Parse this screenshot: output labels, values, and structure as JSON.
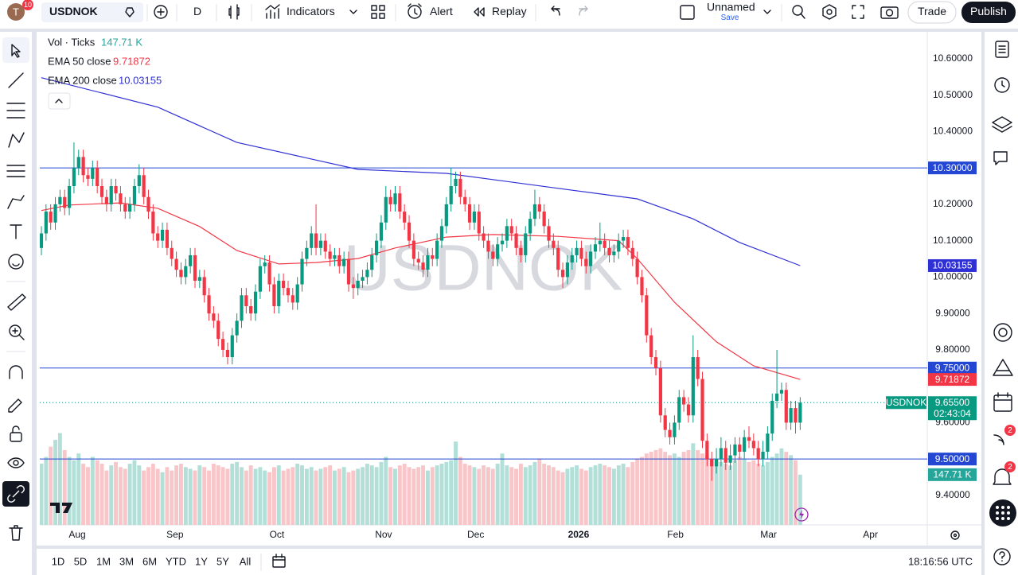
{
  "toolbar": {
    "avatar_badge": "10",
    "symbol": "USDNOK",
    "interval": "D",
    "indicators": "Indicators",
    "alert": "Alert",
    "replay": "Replay",
    "layout_name": "Unnamed",
    "layout_save": "Save",
    "trade": "Trade",
    "publish": "Publish"
  },
  "legend": {
    "volume_label": "Vol · Ticks"
  },
  "watermark": "USDNOK",
  "bottom_bar": {
    "ranges": [
      "1D",
      "5D",
      "1M",
      "3M",
      "6M",
      "YTD",
      "1Y",
      "5Y",
      "All"
    ],
    "clock": "18:16:56 UTC"
  },
  "right_toolbar": {
    "badges": [
      "2",
      "2"
    ]
  },
  "chart_data": {
    "type": "candlestick",
    "up_color": "#089981",
    "down_color": "#f23645",
    "xlim": [
      -0.34,
      190.3
    ],
    "xticks": [
      {
        "value": 7.7,
        "label": "Aug"
      },
      {
        "value": 28.7,
        "label": "Sep"
      },
      {
        "value": 50.6,
        "label": "Oct"
      },
      {
        "value": 73.5,
        "label": "Nov"
      },
      {
        "value": 93.3,
        "label": "Dec"
      },
      {
        "value": 115.4,
        "label": "2026",
        "bold": true
      },
      {
        "value": 136.2,
        "label": "Feb"
      },
      {
        "value": 156.2,
        "label": "Mar"
      },
      {
        "value": 178.1,
        "label": "Apr"
      }
    ],
    "ylim": [
      9.319,
      10.674
    ],
    "yticks": [
      {
        "value": 10.6,
        "label": "10.60000"
      },
      {
        "value": 10.5,
        "label": "10.50000"
      },
      {
        "value": 10.4,
        "label": "10.40000"
      },
      {
        "value": 10.2,
        "label": "10.20000"
      },
      {
        "value": 10.1,
        "label": "10.10000"
      },
      {
        "value": 10.0,
        "label": "10.00000"
      },
      {
        "value": 9.9,
        "label": "9.90000"
      },
      {
        "value": 9.8,
        "label": "9.80000"
      },
      {
        "value": 9.6,
        "label": "9.60000"
      },
      {
        "value": 9.4,
        "label": "9.40000"
      }
    ],
    "candles": [
      [
        10.08,
        10.14,
        10.06,
        10.12
      ],
      [
        10.12,
        10.2,
        10.1,
        10.18
      ],
      [
        10.18,
        10.2,
        10.13,
        10.15
      ],
      [
        10.15,
        10.22,
        10.13,
        10.2
      ],
      [
        10.2,
        10.24,
        10.18,
        10.22
      ],
      [
        10.22,
        10.24,
        10.17,
        10.19
      ],
      [
        10.19,
        10.27,
        10.17,
        10.25
      ],
      [
        10.25,
        10.37,
        10.23,
        10.3
      ],
      [
        10.3,
        10.35,
        10.28,
        10.33
      ],
      [
        10.33,
        10.35,
        10.26,
        10.28
      ],
      [
        10.28,
        10.3,
        10.25,
        10.27
      ],
      [
        10.27,
        10.32,
        10.25,
        10.3
      ],
      [
        10.3,
        10.32,
        10.23,
        10.25
      ],
      [
        10.25,
        10.27,
        10.2,
        10.22
      ],
      [
        10.22,
        10.24,
        10.18,
        10.2
      ],
      [
        10.2,
        10.27,
        10.18,
        10.25
      ],
      [
        10.25,
        10.27,
        10.21,
        10.23
      ],
      [
        10.23,
        10.25,
        10.18,
        10.2
      ],
      [
        10.2,
        10.22,
        10.16,
        10.18
      ],
      [
        10.18,
        10.22,
        10.16,
        10.2
      ],
      [
        10.2,
        10.27,
        10.18,
        10.25
      ],
      [
        10.25,
        10.31,
        10.23,
        10.28
      ],
      [
        10.28,
        10.3,
        10.2,
        10.22
      ],
      [
        10.22,
        10.24,
        10.16,
        10.18
      ],
      [
        10.18,
        10.2,
        10.1,
        10.12
      ],
      [
        10.12,
        10.14,
        10.08,
        10.1
      ],
      [
        10.1,
        10.15,
        10.08,
        10.13
      ],
      [
        10.13,
        10.15,
        10.06,
        10.08
      ],
      [
        10.08,
        10.1,
        10.03,
        10.05
      ],
      [
        10.05,
        10.07,
        10.0,
        10.02
      ],
      [
        10.02,
        10.04,
        9.98,
        10.0
      ],
      [
        10.0,
        10.05,
        9.98,
        10.03
      ],
      [
        10.03,
        10.08,
        10.01,
        10.06
      ],
      [
        10.06,
        10.08,
        9.97,
        9.99
      ],
      [
        9.99,
        10.02,
        9.97,
        10.0
      ],
      [
        10.0,
        10.02,
        9.93,
        9.95
      ],
      [
        9.95,
        9.97,
        9.88,
        9.9
      ],
      [
        9.9,
        9.92,
        9.86,
        9.88
      ],
      [
        9.88,
        9.9,
        9.81,
        9.83
      ],
      [
        9.83,
        9.85,
        9.78,
        9.8
      ],
      [
        9.8,
        9.82,
        9.76,
        9.78
      ],
      [
        9.78,
        9.86,
        9.76,
        9.84
      ],
      [
        9.84,
        9.9,
        9.82,
        9.88
      ],
      [
        9.88,
        9.97,
        9.86,
        9.95
      ],
      [
        9.95,
        9.97,
        9.9,
        9.92
      ],
      [
        9.92,
        9.94,
        9.88,
        9.9
      ],
      [
        9.9,
        9.98,
        9.88,
        9.96
      ],
      [
        9.96,
        10.05,
        9.94,
        10.03
      ],
      [
        10.03,
        10.06,
        10.01,
        10.04
      ],
      [
        10.04,
        10.06,
        9.96,
        9.98
      ],
      [
        9.98,
        10.0,
        9.9,
        9.92
      ],
      [
        9.92,
        10.01,
        9.9,
        9.99
      ],
      [
        9.99,
        10.01,
        9.95,
        9.97
      ],
      [
        9.97,
        9.99,
        9.93,
        9.95
      ],
      [
        9.95,
        9.97,
        9.91,
        9.93
      ],
      [
        9.93,
        10.0,
        9.91,
        9.98
      ],
      [
        9.98,
        10.07,
        9.96,
        10.05
      ],
      [
        10.05,
        10.1,
        10.03,
        10.08
      ],
      [
        10.08,
        10.14,
        10.06,
        10.12
      ],
      [
        10.12,
        10.2,
        10.06,
        10.08
      ],
      [
        10.08,
        10.12,
        10.06,
        10.1
      ],
      [
        10.1,
        10.12,
        10.05,
        10.07
      ],
      [
        10.07,
        10.09,
        10.03,
        10.05
      ],
      [
        10.05,
        10.08,
        10.03,
        10.06
      ],
      [
        10.06,
        10.08,
        10.01,
        10.03
      ],
      [
        10.03,
        10.07,
        10.01,
        10.05
      ],
      [
        10.05,
        10.07,
        9.96,
        9.98
      ],
      [
        9.98,
        10.0,
        9.94,
        9.97
      ],
      [
        9.97,
        10.01,
        9.95,
        9.99
      ],
      [
        9.99,
        10.02,
        9.97,
        10.0
      ],
      [
        10.0,
        10.04,
        9.98,
        10.02
      ],
      [
        10.02,
        10.08,
        10.0,
        10.06
      ],
      [
        10.06,
        10.12,
        10.04,
        10.1
      ],
      [
        10.1,
        10.17,
        10.08,
        10.15
      ],
      [
        10.15,
        10.25,
        10.13,
        10.22
      ],
      [
        10.22,
        10.24,
        10.18,
        10.2
      ],
      [
        10.2,
        10.25,
        10.18,
        10.23
      ],
      [
        10.23,
        10.25,
        10.16,
        10.18
      ],
      [
        10.18,
        10.2,
        10.13,
        10.15
      ],
      [
        10.15,
        10.17,
        10.08,
        10.1
      ],
      [
        10.1,
        10.12,
        10.03,
        10.05
      ],
      [
        10.05,
        10.07,
        10.02,
        10.04
      ],
      [
        10.04,
        10.06,
        10.0,
        10.02
      ],
      [
        10.02,
        10.08,
        10.0,
        10.06
      ],
      [
        10.06,
        10.08,
        10.03,
        10.05
      ],
      [
        10.05,
        10.12,
        10.03,
        10.1
      ],
      [
        10.1,
        10.16,
        10.08,
        10.14
      ],
      [
        10.14,
        10.22,
        10.12,
        10.2
      ],
      [
        10.2,
        10.3,
        10.18,
        10.25
      ],
      [
        10.25,
        10.29,
        10.23,
        10.27
      ],
      [
        10.27,
        10.29,
        10.2,
        10.22
      ],
      [
        10.22,
        10.24,
        10.18,
        10.2
      ],
      [
        10.2,
        10.22,
        10.13,
        10.15
      ],
      [
        10.15,
        10.2,
        10.13,
        10.18
      ],
      [
        10.18,
        10.2,
        10.1,
        10.12
      ],
      [
        10.12,
        10.14,
        10.08,
        10.1
      ],
      [
        10.1,
        10.12,
        10.05,
        10.07
      ],
      [
        10.07,
        10.09,
        10.03,
        10.05
      ],
      [
        10.05,
        10.11,
        10.03,
        10.09
      ],
      [
        10.09,
        10.12,
        10.07,
        10.1
      ],
      [
        10.1,
        10.16,
        10.08,
        10.14
      ],
      [
        10.14,
        10.16,
        10.1,
        10.12
      ],
      [
        10.12,
        10.14,
        10.06,
        10.08
      ],
      [
        10.08,
        10.1,
        10.04,
        10.06
      ],
      [
        10.06,
        10.14,
        10.04,
        10.12
      ],
      [
        10.12,
        10.18,
        10.1,
        10.16
      ],
      [
        10.16,
        10.24,
        10.14,
        10.2
      ],
      [
        10.2,
        10.22,
        10.16,
        10.18
      ],
      [
        10.18,
        10.2,
        10.12,
        10.14
      ],
      [
        10.14,
        10.16,
        10.08,
        10.1
      ],
      [
        10.1,
        10.12,
        10.06,
        10.08
      ],
      [
        10.08,
        10.1,
        10.0,
        10.02
      ],
      [
        10.02,
        10.04,
        9.97,
        10.0
      ],
      [
        10.0,
        10.06,
        9.98,
        10.04
      ],
      [
        10.04,
        10.08,
        10.02,
        10.06
      ],
      [
        10.06,
        10.1,
        10.04,
        10.08
      ],
      [
        10.08,
        10.1,
        10.03,
        10.05
      ],
      [
        10.05,
        10.07,
        10.01,
        10.03
      ],
      [
        10.03,
        10.09,
        10.01,
        10.07
      ],
      [
        10.07,
        10.11,
        10.05,
        10.09
      ],
      [
        10.09,
        10.15,
        10.07,
        10.1
      ],
      [
        10.1,
        10.12,
        10.06,
        10.08
      ],
      [
        10.08,
        10.1,
        10.04,
        10.06
      ],
      [
        10.06,
        10.09,
        10.04,
        10.07
      ],
      [
        10.07,
        10.12,
        10.05,
        10.1
      ],
      [
        10.1,
        10.13,
        10.08,
        10.11
      ],
      [
        10.11,
        10.13,
        10.06,
        10.08
      ],
      [
        10.08,
        10.1,
        10.03,
        10.05
      ],
      [
        10.05,
        10.07,
        9.98,
        10.0
      ],
      [
        10.0,
        10.02,
        9.93,
        9.95
      ],
      [
        9.95,
        9.97,
        9.82,
        9.84
      ],
      [
        9.84,
        9.86,
        9.76,
        9.78
      ],
      [
        9.78,
        9.8,
        9.73,
        9.75
      ],
      [
        9.75,
        9.77,
        9.6,
        9.62
      ],
      [
        9.62,
        9.64,
        9.56,
        9.58
      ],
      [
        9.58,
        9.6,
        9.54,
        9.56
      ],
      [
        9.56,
        9.62,
        9.54,
        9.6
      ],
      [
        9.6,
        9.69,
        9.58,
        9.67
      ],
      [
        9.67,
        9.69,
        9.63,
        9.65
      ],
      [
        9.65,
        9.67,
        9.6,
        9.62
      ],
      [
        9.62,
        9.84,
        9.6,
        9.78
      ],
      [
        9.78,
        9.8,
        9.7,
        9.72
      ],
      [
        9.72,
        9.74,
        9.53,
        9.55
      ],
      [
        9.55,
        9.57,
        9.48,
        9.5
      ],
      [
        9.5,
        9.52,
        9.44,
        9.48
      ],
      [
        9.48,
        9.53,
        9.46,
        9.5
      ],
      [
        9.5,
        9.56,
        9.48,
        9.53
      ],
      [
        9.53,
        9.55,
        9.47,
        9.49
      ],
      [
        9.49,
        9.54,
        9.47,
        9.51
      ],
      [
        9.51,
        9.56,
        9.49,
        9.54
      ],
      [
        9.54,
        9.56,
        9.5,
        9.52
      ],
      [
        9.52,
        9.58,
        9.5,
        9.56
      ],
      [
        9.56,
        9.59,
        9.53,
        9.55
      ],
      [
        9.55,
        9.57,
        9.51,
        9.53
      ],
      [
        9.53,
        9.55,
        9.48,
        9.5
      ],
      [
        9.5,
        9.55,
        9.48,
        9.52
      ],
      [
        9.52,
        9.59,
        9.5,
        9.57
      ],
      [
        9.57,
        9.68,
        9.55,
        9.66
      ],
      [
        9.66,
        9.8,
        9.64,
        9.68
      ],
      [
        9.68,
        9.71,
        9.66,
        9.69
      ],
      [
        9.69,
        9.71,
        9.58,
        9.6
      ],
      [
        9.6,
        9.66,
        9.58,
        9.64
      ],
      [
        9.64,
        9.66,
        9.57,
        9.6
      ],
      [
        9.6,
        9.67,
        9.58,
        9.655
      ]
    ],
    "volume": {
      "ylim": [
        0,
        1450
      ],
      "color": "#26a69a",
      "up_color": "#b2dfd8",
      "down_color": "#f8c6c9",
      "last_label": "147.71 K",
      "values": [
        180,
        200,
        230,
        250,
        270,
        220,
        200,
        190,
        210,
        180,
        170,
        200,
        190,
        180,
        160,
        175,
        185,
        170,
        165,
        180,
        190,
        175,
        160,
        170,
        180,
        165,
        155,
        170,
        160,
        175,
        180,
        170,
        165,
        160,
        175,
        170,
        160,
        180,
        175,
        170,
        165,
        180,
        185,
        170,
        160,
        175,
        165,
        170,
        160,
        155,
        170,
        175,
        160,
        165,
        170,
        180,
        175,
        165,
        170,
        160,
        165,
        170,
        175,
        160,
        165,
        170,
        155,
        160,
        165,
        170,
        180,
        175,
        170,
        185,
        200,
        170,
        165,
        175,
        180,
        170,
        165,
        170,
        175,
        160,
        170,
        175,
        180,
        185,
        190,
        245,
        200,
        180,
        175,
        170,
        165,
        175,
        170,
        165,
        180,
        210,
        175,
        170,
        165,
        180,
        170,
        175,
        185,
        195,
        180,
        175,
        170,
        160,
        155,
        165,
        170,
        175,
        165,
        160,
        170,
        175,
        180,
        175,
        170,
        165,
        175,
        180,
        170,
        185,
        195,
        200,
        210,
        215,
        220,
        225,
        215,
        205,
        210,
        200,
        215,
        220,
        240,
        220,
        210,
        205,
        195,
        190,
        185,
        180,
        175,
        190,
        200,
        195,
        185,
        190,
        180,
        175,
        185,
        200,
        210,
        225,
        215,
        205,
        190,
        147.71
      ]
    },
    "series": [
      {
        "name": "EMA 50 close",
        "color": "#f23645",
        "last_label": "9.71872",
        "x": [
          0,
          6,
          17,
          25,
          34,
          42,
          51,
          59,
          68,
          76,
          87,
          97,
          111,
          124,
          128,
          136,
          145,
          153,
          163
        ],
        "values": [
          10.183,
          10.198,
          10.204,
          10.189,
          10.139,
          10.073,
          10.036,
          10.04,
          10.051,
          10.08,
          10.11,
          10.117,
          10.112,
          10.1,
          10.051,
          9.931,
          9.822,
          9.756,
          9.71872
        ]
      },
      {
        "name": "EMA 200 close",
        "color": "#2f2fd6",
        "last_label": "10.03155",
        "x": [
          0,
          25,
          42,
          68,
          87,
          111,
          128,
          140,
          150,
          163
        ],
        "values": [
          10.548,
          10.467,
          10.37,
          10.296,
          10.285,
          10.244,
          10.215,
          10.16,
          10.095,
          10.03155
        ]
      }
    ],
    "hlines": [
      {
        "value": 10.3,
        "label": "10.30000",
        "color": "#2346d3"
      },
      {
        "value": 9.75,
        "label": "9.75000",
        "color": "#2346d3"
      },
      {
        "value": 9.5,
        "label": "9.50000",
        "color": "#2346d3"
      }
    ],
    "last_price": {
      "value": 9.655,
      "label": "9.65500",
      "symbol": "USDNOK",
      "countdown": "02:43:04"
    }
  }
}
